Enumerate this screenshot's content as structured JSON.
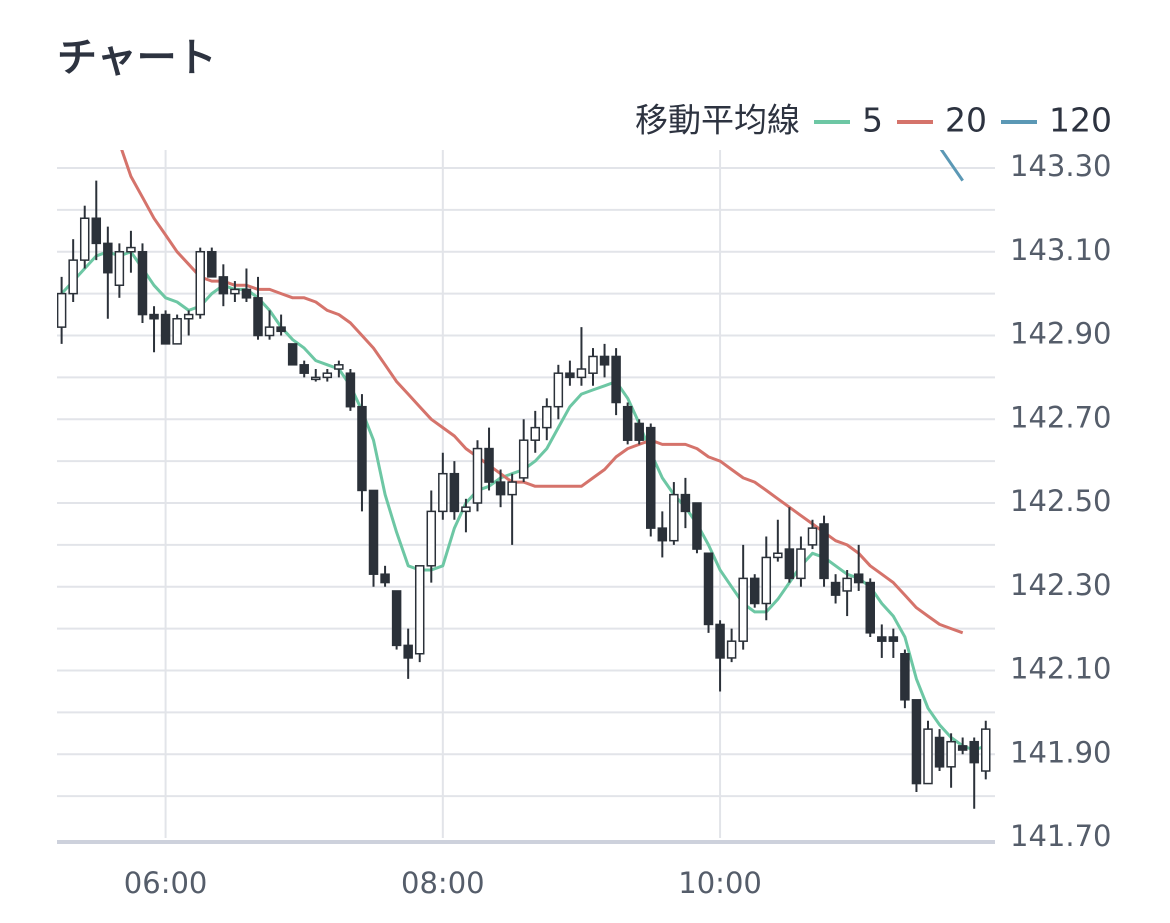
{
  "chart_data": {
    "type": "candlestick",
    "title": "チャート",
    "legend_title": "移動平均線",
    "x": [
      "05:15",
      "05:20",
      "05:25",
      "05:30",
      "05:35",
      "05:40",
      "05:45",
      "05:50",
      "05:55",
      "06:00",
      "06:05",
      "06:10",
      "06:15",
      "06:20",
      "06:25",
      "06:30",
      "06:35",
      "06:40",
      "06:45",
      "06:50",
      "06:55",
      "07:00",
      "07:05",
      "07:10",
      "07:15",
      "07:20",
      "07:25",
      "07:30",
      "07:35",
      "07:40",
      "07:45",
      "07:50",
      "07:55",
      "08:00",
      "08:05",
      "08:10",
      "08:15",
      "08:20",
      "08:25",
      "08:30",
      "08:35",
      "08:40",
      "08:45",
      "08:50",
      "08:55",
      "09:00",
      "09:05",
      "09:10",
      "09:15",
      "09:20",
      "09:25",
      "09:30",
      "09:35",
      "09:40",
      "09:45",
      "09:50",
      "09:55",
      "10:00",
      "10:05",
      "10:10",
      "10:15",
      "10:20",
      "10:25",
      "10:30",
      "10:35",
      "10:40",
      "10:45",
      "10:50",
      "10:55",
      "11:00",
      "11:05",
      "11:10",
      "11:15",
      "11:20",
      "11:25",
      "11:30",
      "11:35",
      "11:40",
      "11:45",
      "11:50",
      "11:55"
    ],
    "open": [
      142.92,
      143.0,
      143.08,
      143.18,
      143.12,
      143.02,
      143.1,
      143.1,
      142.95,
      142.95,
      142.88,
      142.94,
      142.95,
      143.1,
      143.04,
      143.0,
      143.01,
      142.99,
      142.9,
      142.92,
      142.88,
      142.83,
      142.8,
      142.8,
      142.82,
      142.81,
      142.73,
      142.53,
      142.33,
      142.29,
      142.16,
      142.14,
      142.35,
      142.48,
      142.57,
      142.48,
      142.5,
      142.63,
      142.55,
      142.52,
      142.56,
      142.65,
      142.68,
      142.73,
      142.81,
      142.8,
      142.81,
      142.85,
      142.85,
      142.73,
      142.69,
      142.68,
      142.44,
      142.41,
      142.52,
      142.5,
      142.38,
      142.21,
      142.13,
      142.17,
      142.32,
      142.26,
      142.37,
      142.39,
      142.32,
      142.4,
      142.45,
      142.31,
      142.29,
      142.33,
      142.31,
      142.18,
      142.18,
      142.14,
      142.03,
      141.83,
      141.94,
      141.87,
      141.92,
      141.93,
      141.86
    ],
    "high": [
      143.04,
      143.13,
      143.21,
      143.27,
      143.16,
      143.12,
      143.15,
      143.12,
      142.97,
      142.96,
      142.95,
      142.96,
      143.11,
      143.11,
      143.07,
      143.03,
      143.06,
      143.04,
      142.96,
      142.95,
      142.88,
      142.84,
      142.82,
      142.82,
      142.84,
      142.82,
      142.76,
      142.53,
      142.35,
      142.29,
      142.2,
      142.35,
      142.53,
      142.62,
      142.6,
      142.51,
      142.65,
      142.68,
      142.58,
      142.57,
      142.7,
      142.72,
      142.75,
      142.83,
      142.84,
      142.92,
      142.87,
      142.88,
      142.87,
      142.74,
      142.7,
      142.69,
      142.48,
      142.55,
      142.56,
      142.5,
      142.38,
      142.22,
      142.2,
      142.4,
      142.33,
      142.42,
      142.46,
      142.49,
      142.42,
      142.46,
      142.47,
      142.33,
      142.34,
      142.4,
      142.32,
      142.21,
      142.2,
      142.15,
      142.03,
      141.98,
      141.96,
      141.95,
      141.94,
      141.94,
      141.98
    ],
    "low": [
      142.88,
      142.98,
      143.06,
      143.08,
      142.94,
      142.99,
      143.05,
      142.93,
      142.86,
      142.88,
      142.88,
      142.9,
      142.94,
      143.04,
      142.97,
      142.98,
      142.98,
      142.89,
      142.89,
      142.9,
      142.83,
      142.8,
      142.79,
      142.79,
      142.8,
      142.72,
      142.48,
      142.3,
      142.3,
      142.15,
      142.08,
      142.12,
      142.31,
      142.46,
      142.46,
      142.43,
      142.48,
      142.53,
      142.49,
      142.4,
      142.55,
      142.62,
      142.65,
      142.7,
      142.78,
      142.78,
      142.78,
      142.8,
      142.71,
      142.64,
      142.64,
      142.42,
      142.37,
      142.4,
      142.44,
      142.38,
      142.19,
      142.05,
      142.12,
      142.15,
      142.25,
      142.22,
      142.36,
      142.31,
      142.3,
      142.39,
      142.3,
      142.26,
      142.23,
      142.29,
      142.18,
      142.13,
      142.13,
      142.01,
      141.81,
      141.83,
      141.86,
      141.82,
      141.9,
      141.77,
      141.84
    ],
    "close": [
      143.0,
      143.08,
      143.18,
      143.12,
      143.05,
      143.1,
      143.11,
      142.95,
      142.94,
      142.88,
      142.94,
      142.95,
      143.1,
      143.04,
      143.0,
      143.01,
      142.99,
      142.9,
      142.92,
      142.91,
      142.83,
      142.81,
      142.8,
      142.81,
      142.83,
      142.73,
      142.53,
      142.33,
      142.31,
      142.16,
      142.13,
      142.35,
      142.48,
      142.57,
      142.48,
      142.49,
      142.63,
      142.55,
      142.52,
      142.55,
      142.65,
      142.68,
      142.73,
      142.81,
      142.8,
      142.82,
      142.85,
      142.83,
      142.74,
      142.65,
      142.65,
      142.44,
      142.41,
      142.52,
      142.48,
      142.39,
      142.21,
      142.13,
      142.17,
      142.32,
      142.26,
      142.37,
      142.38,
      142.32,
      142.39,
      142.44,
      142.32,
      142.28,
      142.32,
      142.31,
      142.19,
      142.17,
      142.17,
      142.03,
      141.83,
      141.96,
      141.87,
      141.93,
      141.91,
      141.88,
      141.96
    ],
    "up_color": "#ffffff",
    "down_color": "#2b3139",
    "edge_color": "#2b3139",
    "series": [
      {
        "name": "5",
        "color": "#6dc7a4",
        "values": [
          143.0,
          143.03,
          143.06,
          143.09,
          143.1,
          143.09,
          143.1,
          143.06,
          143.02,
          142.99,
          142.98,
          142.96,
          142.97,
          143.0,
          143.02,
          143.01,
          143.01,
          142.99,
          142.96,
          142.92,
          142.89,
          142.87,
          142.84,
          142.83,
          142.82,
          142.78,
          142.72,
          142.65,
          142.52,
          142.43,
          142.35,
          142.34,
          142.34,
          142.35,
          142.44,
          142.5,
          142.53,
          142.54,
          142.56,
          142.57,
          142.58,
          142.6,
          142.63,
          142.68,
          142.73,
          142.76,
          142.77,
          142.78,
          142.79,
          142.75,
          142.69,
          142.62,
          142.56,
          142.52,
          142.49,
          142.45,
          142.4,
          142.34,
          142.3,
          142.26,
          142.24,
          142.24,
          142.27,
          142.31,
          142.35,
          142.38,
          142.37,
          142.35,
          142.33,
          142.32,
          142.3,
          142.26,
          142.23,
          142.18,
          142.08,
          142.01,
          141.97,
          141.94,
          141.92,
          141.91,
          141.92
        ]
      },
      {
        "name": "20",
        "color": "#d5736b",
        "values": [
          null,
          null,
          null,
          null,
          null,
          143.36,
          143.28,
          143.23,
          143.18,
          143.14,
          143.1,
          143.07,
          143.04,
          143.03,
          143.03,
          143.02,
          143.02,
          143.01,
          143.01,
          143.0,
          142.99,
          142.99,
          142.98,
          142.96,
          142.95,
          142.93,
          142.9,
          142.87,
          142.83,
          142.79,
          142.76,
          142.73,
          142.7,
          142.68,
          142.66,
          142.63,
          142.61,
          142.59,
          142.57,
          142.55,
          142.55,
          142.54,
          142.54,
          142.54,
          142.54,
          142.54,
          142.56,
          142.58,
          142.61,
          142.63,
          142.64,
          142.65,
          142.64,
          142.64,
          142.64,
          142.63,
          142.61,
          142.6,
          142.58,
          142.56,
          142.55,
          142.53,
          142.51,
          142.49,
          142.47,
          142.45,
          142.43,
          142.41,
          142.4,
          142.38,
          142.35,
          142.33,
          142.31,
          142.28,
          142.25,
          142.23,
          142.21,
          142.2,
          142.19,
          null,
          null
        ]
      },
      {
        "name": "120",
        "color": "#5b98b5",
        "values": [
          null,
          null,
          null,
          null,
          null,
          null,
          null,
          null,
          null,
          null,
          null,
          null,
          null,
          null,
          null,
          null,
          null,
          null,
          null,
          null,
          null,
          null,
          null,
          null,
          null,
          null,
          null,
          null,
          null,
          null,
          null,
          null,
          null,
          null,
          null,
          null,
          null,
          null,
          null,
          null,
          null,
          null,
          null,
          null,
          null,
          null,
          null,
          null,
          null,
          null,
          null,
          null,
          null,
          null,
          null,
          null,
          null,
          null,
          null,
          null,
          null,
          null,
          null,
          null,
          null,
          null,
          null,
          null,
          null,
          null,
          null,
          null,
          null,
          null,
          null,
          null,
          143.35,
          143.31,
          143.27,
          null,
          null
        ]
      }
    ],
    "xlim": [
      "05:13",
      "11:59"
    ],
    "xticks": [
      "06:00",
      "08:00",
      "10:00"
    ],
    "ylim": [
      141.7,
      143.343
    ],
    "yticks": [
      {
        "value": 143.3,
        "label": "143.30"
      },
      {
        "value": 143.1,
        "label": "143.10"
      },
      {
        "value": 142.9,
        "label": "142.90"
      },
      {
        "value": 142.7,
        "label": "142.70"
      },
      {
        "value": 142.5,
        "label": "142.50"
      },
      {
        "value": 142.3,
        "label": "142.30"
      },
      {
        "value": 142.1,
        "label": "142.10"
      },
      {
        "value": 141.9,
        "label": "141.90"
      },
      {
        "value": 141.7,
        "label": "141.70"
      }
    ],
    "ygrid": [
      143.2,
      143.0,
      142.8,
      142.6,
      142.4,
      142.2,
      142.0,
      141.8
    ],
    "grid": true
  }
}
